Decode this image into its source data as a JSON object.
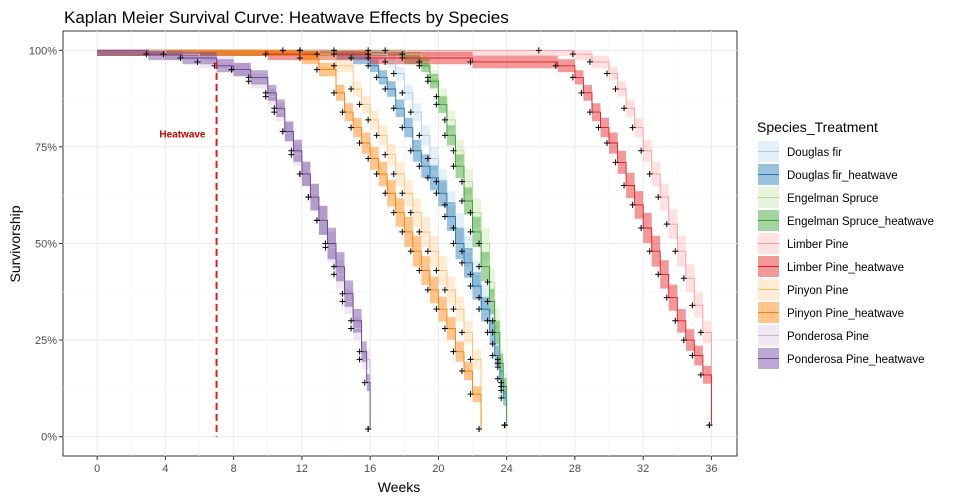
{
  "chart_data": {
    "type": "line",
    "subtype": "kaplan-meier-step",
    "title": "Kaplan Meier Survival Curve: Heatwave Effects by Species",
    "xlabel": "Weeks",
    "ylabel": "Survivorship",
    "xlim": [
      -2,
      37.5
    ],
    "ylim": [
      -0.05,
      1.05
    ],
    "xticks": [
      0,
      4,
      8,
      12,
      16,
      20,
      24,
      28,
      32,
      36
    ],
    "yticks": [
      0,
      0.25,
      0.5,
      0.75,
      1.0
    ],
    "ytick_labels": [
      "0%",
      "25%",
      "50%",
      "75%",
      "100%"
    ],
    "grid": true,
    "legend": {
      "title": "Species_Treatment",
      "placement": "right"
    },
    "annotations": [
      {
        "type": "vline",
        "x": 7,
        "color": "#e41a1c",
        "style": "dashed"
      },
      {
        "type": "text",
        "x": 5,
        "y": 0.775,
        "text": "Heatwave",
        "color": "#cc0000"
      }
    ],
    "series": [
      {
        "name": "Douglas fir",
        "color": "#a6cee3",
        "faint": true,
        "points": [
          [
            0,
            1
          ],
          [
            14,
            1
          ],
          [
            16,
            0.99
          ],
          [
            17,
            0.97
          ],
          [
            17.5,
            0.94
          ],
          [
            18,
            0.89
          ],
          [
            18.5,
            0.84
          ],
          [
            19,
            0.78
          ],
          [
            19.5,
            0.72
          ],
          [
            20,
            0.66
          ],
          [
            20.5,
            0.6
          ],
          [
            21,
            0.54
          ],
          [
            21.5,
            0.48
          ],
          [
            22,
            0.42
          ],
          [
            22.5,
            0.36
          ],
          [
            23,
            0.3
          ],
          [
            23.3,
            0.24
          ],
          [
            23.6,
            0.18
          ],
          [
            23.8,
            0.12
          ],
          [
            24,
            0.03
          ]
        ]
      },
      {
        "name": "Douglas fir_heatwave",
        "color": "#1f78b4",
        "points": [
          [
            0,
            1
          ],
          [
            12,
            1
          ],
          [
            14,
            0.99
          ],
          [
            15,
            0.98
          ],
          [
            16,
            0.96
          ],
          [
            16.5,
            0.93
          ],
          [
            17,
            0.9
          ],
          [
            17.5,
            0.85
          ],
          [
            18,
            0.8
          ],
          [
            18.5,
            0.74
          ],
          [
            19,
            0.7
          ],
          [
            19.5,
            0.67
          ],
          [
            20,
            0.63
          ],
          [
            20.5,
            0.57
          ],
          [
            21,
            0.5
          ],
          [
            21.5,
            0.45
          ],
          [
            22,
            0.39
          ],
          [
            22.5,
            0.33
          ],
          [
            23,
            0.27
          ],
          [
            23.3,
            0.21
          ],
          [
            23.6,
            0.15
          ],
          [
            23.8,
            0.1
          ],
          [
            24,
            0.03
          ]
        ]
      },
      {
        "name": "Engelman Spruce",
        "color": "#b2df8a",
        "faint": true,
        "points": [
          [
            0,
            1
          ],
          [
            16,
            1
          ],
          [
            18,
            0.99
          ],
          [
            19,
            0.97
          ],
          [
            19.5,
            0.93
          ],
          [
            20,
            0.88
          ],
          [
            20.5,
            0.82
          ],
          [
            21,
            0.74
          ],
          [
            21.5,
            0.66
          ],
          [
            22,
            0.58
          ],
          [
            22.5,
            0.5
          ],
          [
            23,
            0.4
          ],
          [
            23.3,
            0.3
          ],
          [
            23.6,
            0.2
          ],
          [
            23.8,
            0.14
          ],
          [
            24,
            0.03
          ]
        ]
      },
      {
        "name": "Engelman Spruce_heatwave",
        "color": "#33a02c",
        "points": [
          [
            0,
            1
          ],
          [
            17,
            1
          ],
          [
            18,
            0.98
          ],
          [
            19,
            0.96
          ],
          [
            19.5,
            0.92
          ],
          [
            20,
            0.86
          ],
          [
            20.5,
            0.78
          ],
          [
            21,
            0.7
          ],
          [
            21.5,
            0.61
          ],
          [
            22,
            0.53
          ],
          [
            22.5,
            0.44
          ],
          [
            23,
            0.35
          ],
          [
            23.3,
            0.27
          ],
          [
            23.6,
            0.19
          ],
          [
            23.8,
            0.13
          ],
          [
            24,
            0.03
          ]
        ]
      },
      {
        "name": "Limber Pine",
        "color": "#fb9a99",
        "faint": true,
        "points": [
          [
            0,
            1
          ],
          [
            26,
            1
          ],
          [
            28,
            0.99
          ],
          [
            29,
            0.97
          ],
          [
            30,
            0.94
          ],
          [
            30.5,
            0.9
          ],
          [
            31,
            0.85
          ],
          [
            31.5,
            0.8
          ],
          [
            32,
            0.74
          ],
          [
            32.5,
            0.68
          ],
          [
            33,
            0.62
          ],
          [
            33.5,
            0.55
          ],
          [
            34,
            0.48
          ],
          [
            34.5,
            0.41
          ],
          [
            35,
            0.34
          ],
          [
            35.5,
            0.27
          ],
          [
            36,
            0.03
          ]
        ]
      },
      {
        "name": "Limber Pine_heatwave",
        "color": "#e31a1c",
        "points": [
          [
            0,
            1
          ],
          [
            10,
            0.99
          ],
          [
            16,
            0.98
          ],
          [
            22,
            0.97
          ],
          [
            27,
            0.96
          ],
          [
            28,
            0.93
          ],
          [
            28.5,
            0.89
          ],
          [
            29,
            0.84
          ],
          [
            29.5,
            0.8
          ],
          [
            30,
            0.76
          ],
          [
            30.5,
            0.71
          ],
          [
            31,
            0.65
          ],
          [
            31.5,
            0.6
          ],
          [
            32,
            0.54
          ],
          [
            32.5,
            0.48
          ],
          [
            33,
            0.42
          ],
          [
            33.5,
            0.36
          ],
          [
            34,
            0.3
          ],
          [
            34.5,
            0.25
          ],
          [
            35,
            0.21
          ],
          [
            35.5,
            0.16
          ],
          [
            36,
            0.03
          ]
        ]
      },
      {
        "name": "Pinyon Pine",
        "color": "#fdbf6f",
        "faint": true,
        "points": [
          [
            0,
            1
          ],
          [
            12,
            1
          ],
          [
            13,
            0.99
          ],
          [
            14,
            0.96
          ],
          [
            15,
            0.9
          ],
          [
            15.5,
            0.86
          ],
          [
            16,
            0.82
          ],
          [
            16.5,
            0.78
          ],
          [
            17,
            0.73
          ],
          [
            17.5,
            0.68
          ],
          [
            18,
            0.63
          ],
          [
            18.5,
            0.58
          ],
          [
            19,
            0.53
          ],
          [
            19.5,
            0.48
          ],
          [
            20,
            0.43
          ],
          [
            20.5,
            0.38
          ],
          [
            21,
            0.33
          ],
          [
            21.5,
            0.27
          ],
          [
            22,
            0.2
          ],
          [
            22.5,
            0.02
          ]
        ]
      },
      {
        "name": "Pinyon Pine_heatwave",
        "color": "#ff7f00",
        "points": [
          [
            0,
            1
          ],
          [
            11,
            1
          ],
          [
            12,
            0.98
          ],
          [
            13,
            0.95
          ],
          [
            14,
            0.89
          ],
          [
            14.5,
            0.84
          ],
          [
            15,
            0.8
          ],
          [
            15.5,
            0.76
          ],
          [
            16,
            0.72
          ],
          [
            16.5,
            0.68
          ],
          [
            17,
            0.63
          ],
          [
            17.5,
            0.58
          ],
          [
            18,
            0.53
          ],
          [
            18.5,
            0.48
          ],
          [
            19,
            0.43
          ],
          [
            19.5,
            0.38
          ],
          [
            20,
            0.33
          ],
          [
            20.5,
            0.28
          ],
          [
            21,
            0.22
          ],
          [
            21.5,
            0.17
          ],
          [
            22,
            0.11
          ],
          [
            22.5,
            0.02
          ]
        ]
      },
      {
        "name": "Ponderosa Pine",
        "color": "#cab2d6",
        "faint": true,
        "points": [
          [
            0,
            1
          ],
          [
            4,
            0.99
          ],
          [
            6,
            0.97
          ],
          [
            8,
            0.95
          ],
          [
            9,
            0.92
          ],
          [
            10,
            0.88
          ],
          [
            10.5,
            0.84
          ],
          [
            11,
            0.79
          ],
          [
            11.5,
            0.73
          ],
          [
            12,
            0.68
          ],
          [
            12.5,
            0.62
          ],
          [
            13,
            0.56
          ],
          [
            13.5,
            0.49
          ],
          [
            14,
            0.42
          ],
          [
            14.5,
            0.35
          ],
          [
            15,
            0.28
          ],
          [
            15.5,
            0.2
          ],
          [
            16,
            0.02
          ]
        ]
      },
      {
        "name": "Ponderosa Pine_heatwave",
        "color": "#6a3d9a",
        "points": [
          [
            0,
            1
          ],
          [
            3,
            0.99
          ],
          [
            5,
            0.98
          ],
          [
            7,
            0.96
          ],
          [
            8,
            0.95
          ],
          [
            9,
            0.93
          ],
          [
            10,
            0.89
          ],
          [
            10.5,
            0.85
          ],
          [
            11,
            0.79
          ],
          [
            11.5,
            0.74
          ],
          [
            12,
            0.68
          ],
          [
            12.5,
            0.62
          ],
          [
            13,
            0.56
          ],
          [
            13.5,
            0.5
          ],
          [
            14,
            0.44
          ],
          [
            14.5,
            0.37
          ],
          [
            15,
            0.3
          ],
          [
            15.5,
            0.22
          ],
          [
            15.8,
            0.14
          ],
          [
            16,
            0.02
          ]
        ]
      }
    ]
  }
}
